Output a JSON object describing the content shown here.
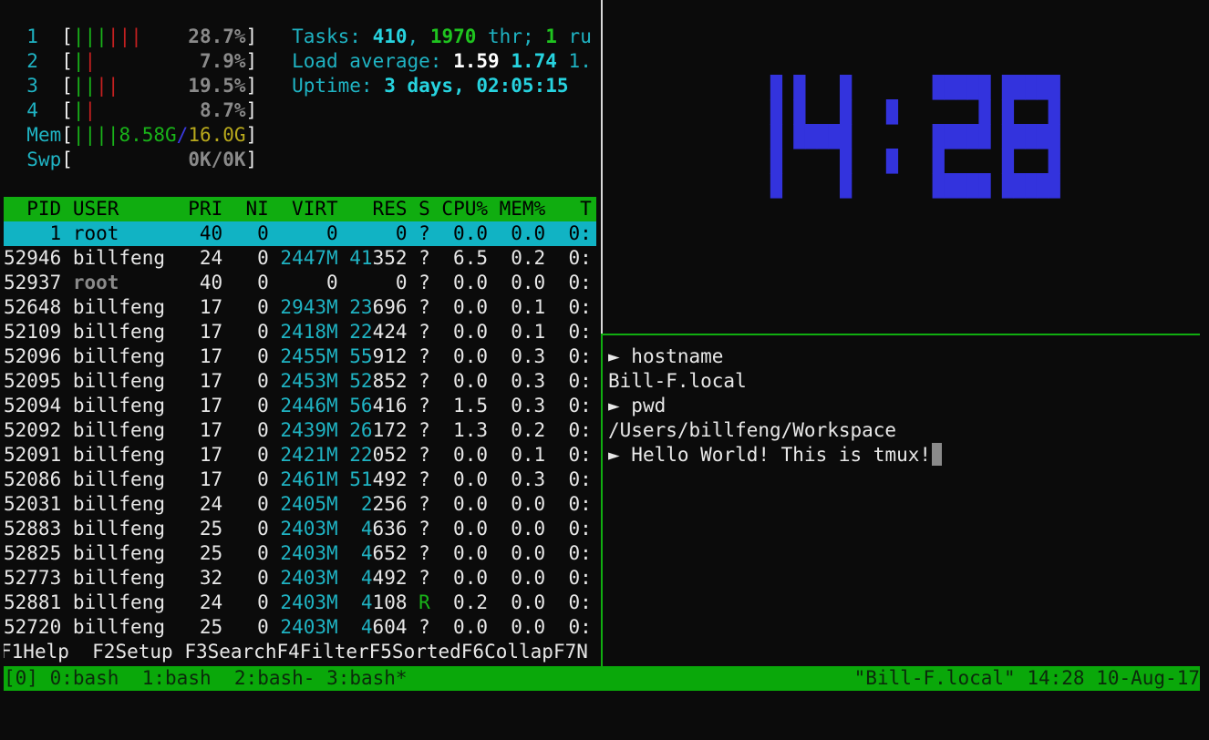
{
  "htop": {
    "cpus": [
      {
        "label": "1",
        "bars_normal": 3,
        "bars_kernel": 3,
        "percent": "28.7%"
      },
      {
        "label": "2",
        "bars_normal": 1,
        "bars_kernel": 1,
        "percent": "7.9%"
      },
      {
        "label": "3",
        "bars_normal": 2,
        "bars_kernel": 2,
        "percent": "19.5%"
      },
      {
        "label": "4",
        "bars_normal": 1,
        "bars_kernel": 1,
        "percent": "8.7%"
      }
    ],
    "mem": {
      "label": "Mem",
      "bars": 4,
      "used": "8.58G",
      "sep": "/",
      "total": "16.0G"
    },
    "swp": {
      "label": "Swp",
      "value": "0K/0K"
    },
    "tasks": {
      "label": "Tasks: ",
      "count": "410",
      "comma": ", ",
      "threads": "1970",
      "thr_label": " thr; ",
      "running": "1",
      "running_label": " ru"
    },
    "load": {
      "label": "Load average: ",
      "one": "1.59",
      "five": "1.74",
      "fifteen": "1."
    },
    "uptime": {
      "label": "Uptime: ",
      "value": "3 days, 02:05:15"
    },
    "columns": [
      "PID",
      "USER",
      "PRI",
      "NI",
      "VIRT",
      "RES",
      "S",
      "CPU%",
      "MEM%",
      "T"
    ],
    "processes": [
      [
        "1",
        "root",
        "40",
        "0",
        "0",
        "0",
        "?",
        "0.0",
        "0.0",
        "0:"
      ],
      [
        "52946",
        "billfeng",
        "24",
        "0",
        "2447M",
        "41352",
        "?",
        "6.5",
        "0.2",
        "0:"
      ],
      [
        "52937",
        "root",
        "40",
        "0",
        "0",
        "0",
        "?",
        "0.0",
        "0.0",
        "0:"
      ],
      [
        "52648",
        "billfeng",
        "17",
        "0",
        "2943M",
        "23696",
        "?",
        "0.0",
        "0.1",
        "0:"
      ],
      [
        "52109",
        "billfeng",
        "17",
        "0",
        "2418M",
        "22424",
        "?",
        "0.0",
        "0.1",
        "0:"
      ],
      [
        "52096",
        "billfeng",
        "17",
        "0",
        "2455M",
        "55912",
        "?",
        "0.0",
        "0.3",
        "0:"
      ],
      [
        "52095",
        "billfeng",
        "17",
        "0",
        "2453M",
        "52852",
        "?",
        "0.0",
        "0.3",
        "0:"
      ],
      [
        "52094",
        "billfeng",
        "17",
        "0",
        "2446M",
        "56416",
        "?",
        "1.5",
        "0.3",
        "0:"
      ],
      [
        "52092",
        "billfeng",
        "17",
        "0",
        "2439M",
        "26172",
        "?",
        "1.3",
        "0.2",
        "0:"
      ],
      [
        "52091",
        "billfeng",
        "17",
        "0",
        "2421M",
        "22052",
        "?",
        "0.0",
        "0.1",
        "0:"
      ],
      [
        "52086",
        "billfeng",
        "17",
        "0",
        "2461M",
        "51492",
        "?",
        "0.0",
        "0.3",
        "0:"
      ],
      [
        "52031",
        "billfeng",
        "24",
        "0",
        "2405M",
        "2256",
        "?",
        "0.0",
        "0.0",
        "0:"
      ],
      [
        "52883",
        "billfeng",
        "25",
        "0",
        "2403M",
        "4636",
        "?",
        "0.0",
        "0.0",
        "0:"
      ],
      [
        "52825",
        "billfeng",
        "25",
        "0",
        "2403M",
        "4652",
        "?",
        "0.0",
        "0.0",
        "0:"
      ],
      [
        "52773",
        "billfeng",
        "32",
        "0",
        "2403M",
        "4492",
        "?",
        "0.0",
        "0.0",
        "0:"
      ],
      [
        "52881",
        "billfeng",
        "24",
        "0",
        "2403M",
        "4108",
        "R",
        "0.2",
        "0.0",
        "0:"
      ],
      [
        "52720",
        "billfeng",
        "25",
        "0",
        "2403M",
        "4604",
        "?",
        "0.0",
        "0.0",
        "0:"
      ]
    ],
    "selected_pid": "1",
    "function_keys": [
      {
        "key": "F1",
        "label": "Help  "
      },
      {
        "key": "F2",
        "label": "Setup "
      },
      {
        "key": "F3",
        "label": "Search"
      },
      {
        "key": "F4",
        "label": "Filter"
      },
      {
        "key": "F5",
        "label": "Sorted"
      },
      {
        "key": "F6",
        "label": "Collap"
      },
      {
        "key": "F7",
        "label": "N"
      }
    ]
  },
  "clock": {
    "time": "14:28",
    "color": "#3333dd"
  },
  "shell": {
    "prompt_symbol": "►",
    "lines": [
      {
        "type": "cmd",
        "text": " hostname"
      },
      {
        "type": "out",
        "text": "Bill-F.local"
      },
      {
        "type": "cmd",
        "text": " pwd"
      },
      {
        "type": "out",
        "text": "/Users/billfeng/Workspace"
      },
      {
        "type": "cmd",
        "text": " Hello World! This is tmux!"
      }
    ]
  },
  "tmux_status": {
    "session": "[0]",
    "windows": [
      "0:bash",
      "1:bash",
      "2:bash-",
      "3:bash*"
    ],
    "host": "\"Bill-F.local\"",
    "time": "14:28",
    "date": "10-Aug-17"
  }
}
